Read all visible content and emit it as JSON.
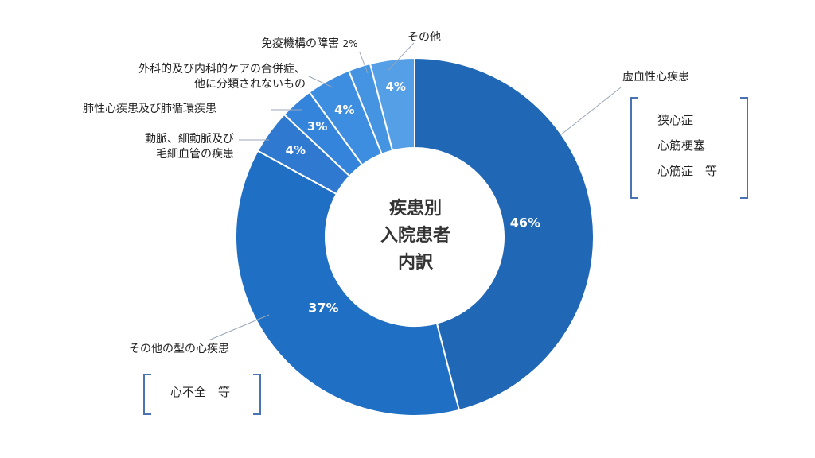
{
  "chart_data": {
    "type": "pie",
    "title": "疾患別\n入院患者\n内訳",
    "title_lines": [
      "疾患別",
      "入院患者",
      "内訳"
    ],
    "slices": [
      {
        "label": "虚血性心疾患",
        "value": 46,
        "display": "46%",
        "color": "#2067b5"
      },
      {
        "label": "その他の型の心疾患",
        "value": 37,
        "display": "37%",
        "color": "#1f6fc4"
      },
      {
        "label": "動脈、細動脈及び毛細血管の疾患",
        "value": 4,
        "display": "4%",
        "color": "#2f7ad0"
      },
      {
        "label": "肺性心疾患及び肺循環疾患",
        "value": 3,
        "display": "3%",
        "color": "#3584db"
      },
      {
        "label": "外科的及び内科的ケアの合併症、他に分類されないもの",
        "value": 4,
        "display": "4%",
        "color": "#3d8de0"
      },
      {
        "label": "免疫機構の障害",
        "value": 2,
        "display": "2%",
        "color": "#4594e2"
      },
      {
        "label": "その他",
        "value": 4,
        "display": "4%",
        "color": "#559fe6"
      }
    ]
  },
  "labels": {
    "ischemic": "虚血性心疾患",
    "ischemic_notes": [
      "狭心症",
      "心筋梗塞",
      "心筋症　等"
    ],
    "other_type": "その他の型の心疾患",
    "other_type_note": "心不全　等",
    "artery_l1": "動脈、細動脈及び",
    "artery_l2": "毛細血管の疾患",
    "pulmonary": "肺性心疾患及び肺循環疾患",
    "surgical_l1": "外科的及び内科的ケアの合併症、",
    "surgical_l2": "他に分類されないもの",
    "immune": "免疫機構の障害",
    "immune_pct": "2%",
    "other": "その他"
  }
}
